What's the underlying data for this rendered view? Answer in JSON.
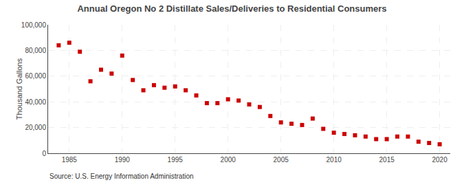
{
  "chart_data": {
    "type": "scatter",
    "title": "Annual Oregon No 2 Distillate Sales/Deliveries to Residential Consumers",
    "ylabel": "Thousand Gallons",
    "annotations": [
      "Source: U.S. Energy Information Administration"
    ],
    "x": [
      1984,
      1985,
      1986,
      1987,
      1988,
      1989,
      1990,
      1991,
      1992,
      1993,
      1994,
      1995,
      1996,
      1997,
      1998,
      1999,
      2000,
      2001,
      2002,
      2003,
      2004,
      2005,
      2006,
      2007,
      2008,
      2009,
      2010,
      2011,
      2012,
      2013,
      2014,
      2015,
      2016,
      2017,
      2018,
      2019,
      2020
    ],
    "values": [
      84000,
      86000,
      79000,
      56000,
      65000,
      62000,
      76000,
      57000,
      49000,
      53000,
      51000,
      52000,
      49000,
      45000,
      39000,
      39000,
      42000,
      41000,
      38000,
      36000,
      29000,
      24000,
      23000,
      22000,
      27000,
      19000,
      16000,
      15000,
      14000,
      13000,
      11000,
      11000,
      13000,
      13000,
      9000,
      8000,
      7000
    ],
    "color": "#cc0000",
    "marker": "square",
    "xlim": [
      1983,
      2021
    ],
    "xticks": [
      1985,
      1990,
      1995,
      2000,
      2005,
      2010,
      2015,
      2020
    ],
    "ylim": [
      0,
      100000
    ],
    "yticks": [
      0,
      {
        "value": 20000,
        "label": "20,000"
      },
      {
        "value": 40000,
        "label": "40,000"
      },
      {
        "value": 60000,
        "label": "60,000"
      },
      {
        "value": 80000,
        "label": "80,000"
      },
      {
        "value": 100000,
        "label": "100,000"
      }
    ],
    "grid": true
  }
}
